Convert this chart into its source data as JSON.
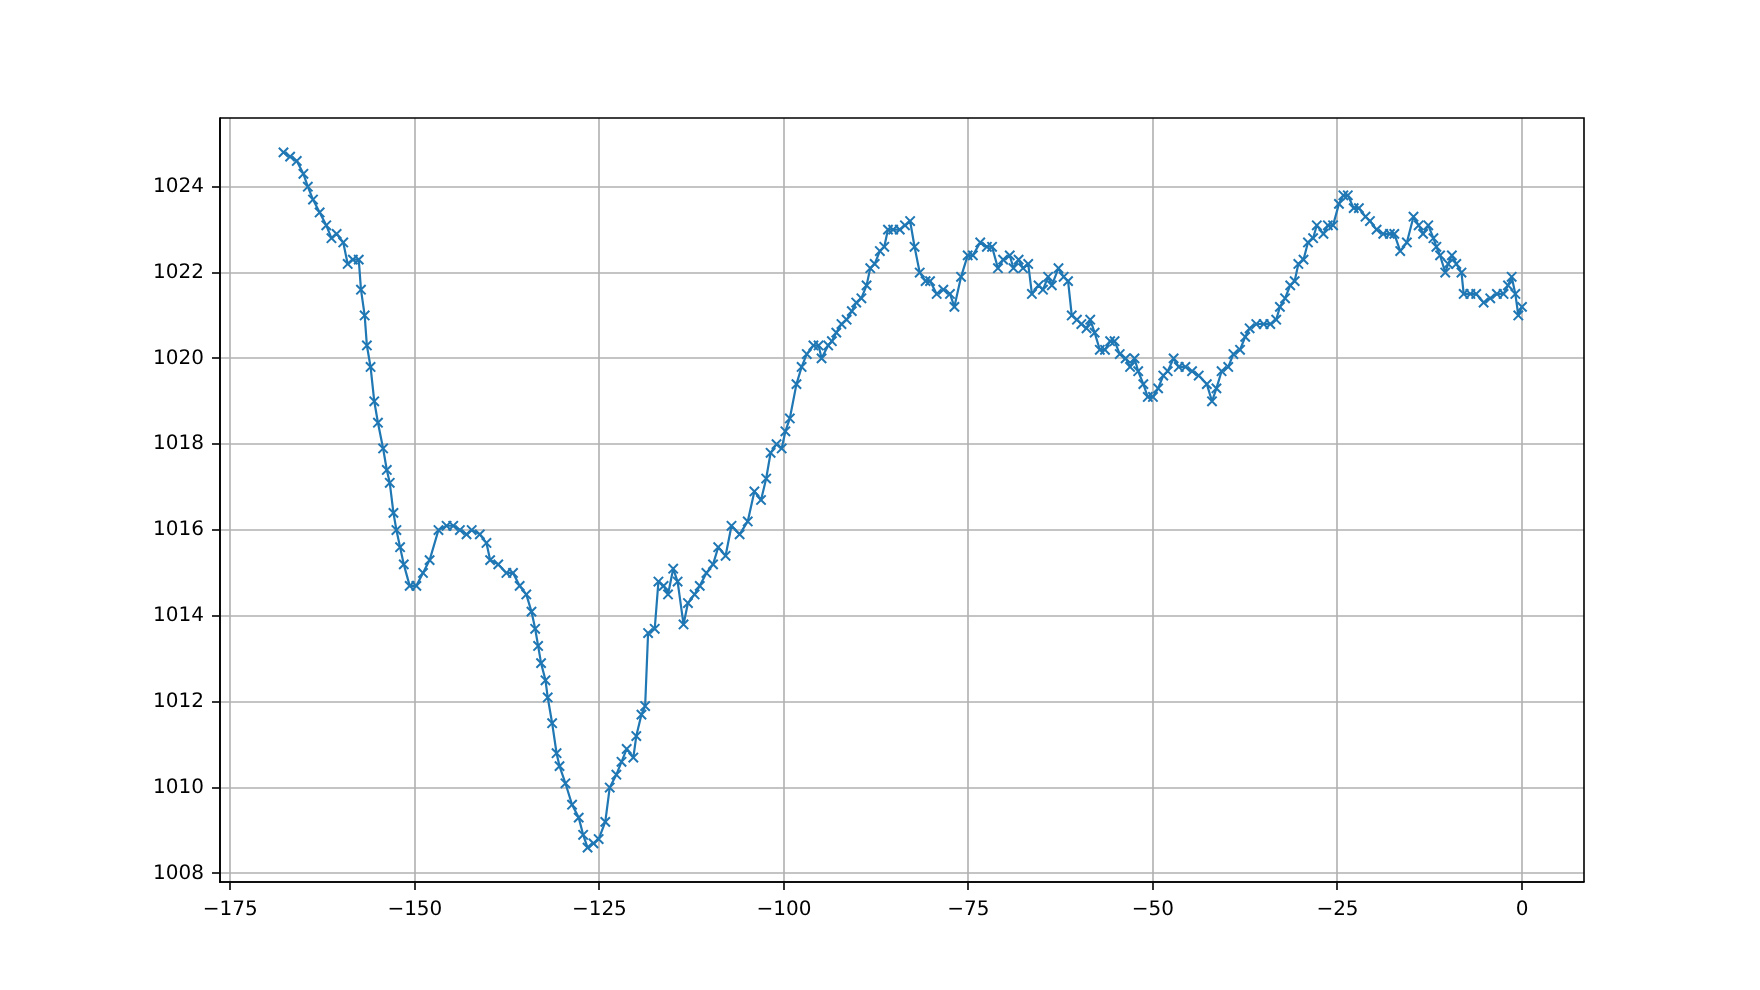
{
  "chart_data": {
    "type": "line",
    "x": [
      -167.8,
      -166.9,
      -166.0,
      -165.1,
      -164.5,
      -163.8,
      -162.9,
      -162.0,
      -161.3,
      -160.6,
      -159.7,
      -159.1,
      -158.4,
      -157.6,
      -157.3,
      -156.8,
      -156.5,
      -156.0,
      -155.5,
      -155.0,
      -154.3,
      -153.8,
      -153.4,
      -152.9,
      -152.5,
      -152.0,
      -151.5,
      -150.7,
      -149.8,
      -148.9,
      -148.0,
      -146.8,
      -145.7,
      -144.8,
      -143.9,
      -143.0,
      -142.3,
      -141.2,
      -140.3,
      -139.8,
      -138.7,
      -137.6,
      -136.7,
      -135.8,
      -134.9,
      -134.2,
      -133.7,
      -133.3,
      -132.9,
      -132.3,
      -132.0,
      -131.4,
      -130.8,
      -130.4,
      -129.6,
      -128.7,
      -127.8,
      -127.2,
      -126.6,
      -125.8,
      -125.1,
      -124.2,
      -123.6,
      -122.7,
      -122.0,
      -121.3,
      -120.4,
      -120.0,
      -119.3,
      -118.8,
      -118.4,
      -117.5,
      -117.0,
      -116.3,
      -115.7,
      -115.0,
      -114.4,
      -113.6,
      -113.0,
      -112.1,
      -111.4,
      -110.5,
      -109.6,
      -108.9,
      -107.9,
      -107.1,
      -106.0,
      -104.9,
      -104.0,
      -103.1,
      -102.4,
      -101.8,
      -101.0,
      -100.3,
      -99.8,
      -99.2,
      -98.3,
      -97.6,
      -96.9,
      -96.0,
      -95.3,
      -94.9,
      -94.0,
      -93.5,
      -92.9,
      -92.2,
      -91.5,
      -90.8,
      -90.2,
      -89.5,
      -88.8,
      -88.3,
      -87.7,
      -87.0,
      -86.4,
      -85.9,
      -85.2,
      -84.3,
      -83.6,
      -82.9,
      -82.3,
      -81.6,
      -80.8,
      -80.2,
      -79.3,
      -78.4,
      -77.5,
      -76.9,
      -76.0,
      -75.1,
      -74.4,
      -73.4,
      -72.5,
      -71.8,
      -71.0,
      -70.3,
      -69.4,
      -68.9,
      -68.2,
      -67.6,
      -66.9,
      -66.4,
      -65.5,
      -64.9,
      -64.2,
      -63.7,
      -62.8,
      -62.1,
      -61.5,
      -61.0,
      -60.3,
      -59.7,
      -59.0,
      -58.5,
      -57.9,
      -57.2,
      -56.5,
      -55.8,
      -55.2,
      -54.5,
      -53.7,
      -53.1,
      -52.5,
      -52.0,
      -51.3,
      -50.7,
      -50.0,
      -49.3,
      -48.6,
      -48.0,
      -47.2,
      -46.5,
      -45.6,
      -44.7,
      -43.8,
      -42.7,
      -42.0,
      -41.4,
      -40.7,
      -39.8,
      -39.1,
      -38.2,
      -37.5,
      -36.9,
      -36.0,
      -35.0,
      -34.1,
      -33.3,
      -32.8,
      -32.1,
      -31.4,
      -30.8,
      -30.3,
      -29.6,
      -29.0,
      -28.3,
      -27.8,
      -26.9,
      -26.3,
      -25.6,
      -24.8,
      -24.2,
      -23.6,
      -22.8,
      -22.1,
      -21.2,
      -20.6,
      -19.7,
      -18.8,
      -17.9,
      -17.3,
      -16.5,
      -15.6,
      -14.7,
      -14.0,
      -13.4,
      -12.7,
      -12.0,
      -11.6,
      -11.1,
      -10.4,
      -10.0,
      -9.5,
      -8.9,
      -8.2,
      -7.9,
      -7.0,
      -6.2,
      -5.2,
      -4.3,
      -3.4,
      -2.5,
      -1.9,
      -1.4,
      -0.9,
      -0.5,
      0
    ],
    "series": [
      {
        "color": "#1f77b4",
        "values": [
          1024.8,
          1024.7,
          1024.6,
          1024.3,
          1024.0,
          1023.7,
          1023.4,
          1023.1,
          1022.8,
          1022.9,
          1022.7,
          1022.2,
          1022.3,
          1022.3,
          1021.6,
          1021.0,
          1020.3,
          1019.8,
          1019.0,
          1018.5,
          1017.9,
          1017.4,
          1017.1,
          1016.4,
          1016.0,
          1015.6,
          1015.2,
          1014.7,
          1014.7,
          1015.0,
          1015.3,
          1016.0,
          1016.1,
          1016.1,
          1016.0,
          1015.9,
          1016.0,
          1015.9,
          1015.7,
          1015.3,
          1015.2,
          1015.0,
          1015.0,
          1014.7,
          1014.5,
          1014.1,
          1013.7,
          1013.3,
          1012.9,
          1012.5,
          1012.1,
          1011.5,
          1010.8,
          1010.5,
          1010.1,
          1009.6,
          1009.3,
          1008.9,
          1008.6,
          1008.7,
          1008.8,
          1009.2,
          1010.0,
          1010.3,
          1010.6,
          1010.9,
          1010.7,
          1011.2,
          1011.7,
          1011.9,
          1013.6,
          1013.7,
          1014.8,
          1014.7,
          1014.5,
          1015.1,
          1014.8,
          1013.8,
          1014.3,
          1014.5,
          1014.7,
          1015.0,
          1015.2,
          1015.6,
          1015.4,
          1016.1,
          1015.9,
          1016.2,
          1016.9,
          1016.7,
          1017.2,
          1017.8,
          1018.0,
          1017.9,
          1018.3,
          1018.6,
          1019.4,
          1019.8,
          1020.1,
          1020.3,
          1020.3,
          1020.0,
          1020.3,
          1020.4,
          1020.6,
          1020.8,
          1020.9,
          1021.1,
          1021.3,
          1021.4,
          1021.7,
          1022.1,
          1022.2,
          1022.5,
          1022.6,
          1023.0,
          1023.0,
          1023.0,
          1023.1,
          1023.2,
          1022.6,
          1022.0,
          1021.8,
          1021.8,
          1021.5,
          1021.6,
          1021.5,
          1021.2,
          1021.9,
          1022.4,
          1022.4,
          1022.7,
          1022.6,
          1022.6,
          1022.1,
          1022.3,
          1022.4,
          1022.1,
          1022.3,
          1022.1,
          1022.2,
          1021.5,
          1021.7,
          1021.6,
          1021.9,
          1021.7,
          1022.1,
          1021.9,
          1021.8,
          1021.0,
          1020.9,
          1020.8,
          1020.7,
          1020.9,
          1020.6,
          1020.2,
          1020.2,
          1020.4,
          1020.4,
          1020.1,
          1020.0,
          1019.8,
          1020.0,
          1019.7,
          1019.4,
          1019.1,
          1019.1,
          1019.3,
          1019.6,
          1019.7,
          1020.0,
          1019.8,
          1019.8,
          1019.7,
          1019.6,
          1019.4,
          1019.0,
          1019.3,
          1019.7,
          1019.8,
          1020.1,
          1020.2,
          1020.5,
          1020.7,
          1020.8,
          1020.8,
          1020.8,
          1020.9,
          1021.2,
          1021.4,
          1021.7,
          1021.8,
          1022.2,
          1022.3,
          1022.7,
          1022.8,
          1023.1,
          1022.9,
          1023.1,
          1023.1,
          1023.6,
          1023.8,
          1023.8,
          1023.5,
          1023.5,
          1023.3,
          1023.2,
          1023.0,
          1022.9,
          1022.9,
          1022.9,
          1022.5,
          1022.7,
          1023.3,
          1023.1,
          1022.9,
          1023.1,
          1022.8,
          1022.6,
          1022.4,
          1022.0,
          1022.2,
          1022.4,
          1022.2,
          1022.0,
          1021.5,
          1021.5,
          1021.5,
          1021.3,
          1021.4,
          1021.5,
          1021.5,
          1021.7,
          1021.9,
          1021.5,
          1021.0,
          1021.2
        ]
      }
    ],
    "xlim": [
      -176.4,
      8.4
    ],
    "xticks": [
      {
        "value": -175,
        "label": "−175"
      },
      {
        "value": -150,
        "label": "−150"
      },
      {
        "value": -125,
        "label": "−125"
      },
      {
        "value": -100,
        "label": "−100"
      },
      {
        "value": -75,
        "label": "−75"
      },
      {
        "value": -50,
        "label": "−50"
      },
      {
        "value": -25,
        "label": "−25"
      },
      0
    ],
    "ylim": [
      1007.8,
      1025.6
    ],
    "yticks": [
      1008,
      1010,
      1012,
      1014,
      1016,
      1018,
      1020,
      1022,
      1024
    ],
    "grid": true,
    "marker": "cross",
    "line_style": "solid"
  }
}
